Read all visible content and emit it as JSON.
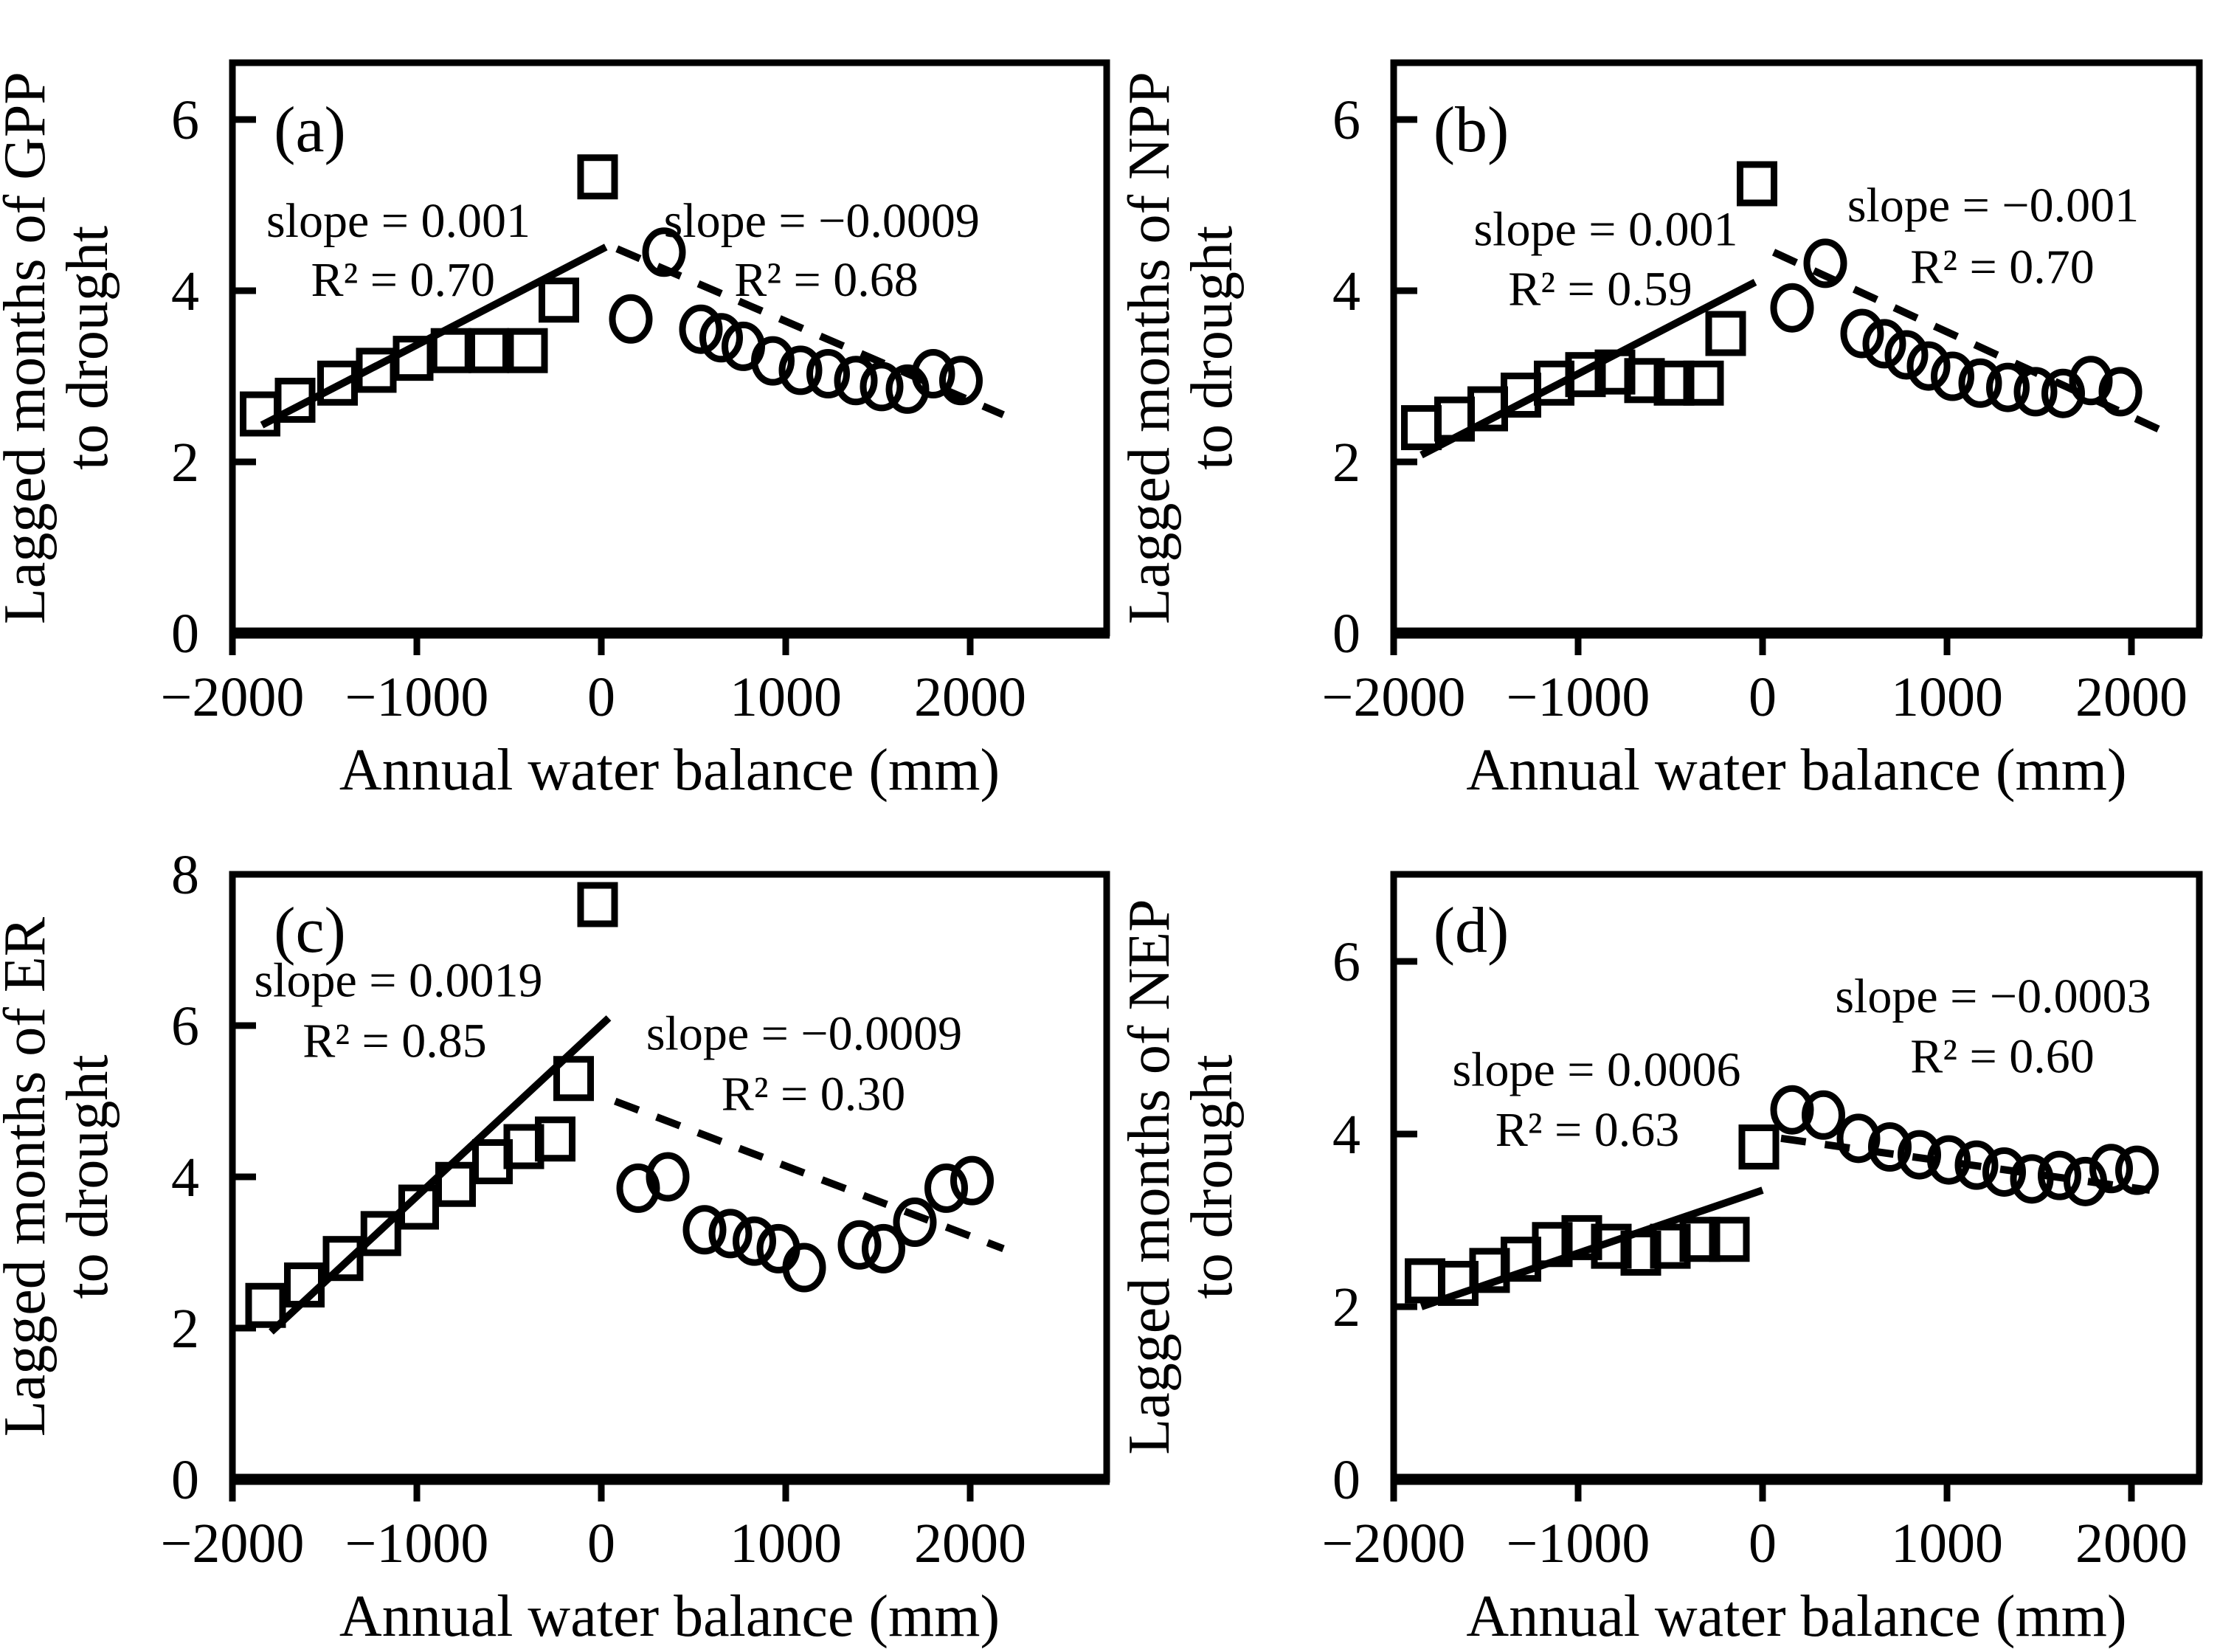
{
  "figure": {
    "background": "#ffffff",
    "ink_color": "#000000",
    "xlabel": "Annual water balance (mm)"
  },
  "chart_data": [
    {
      "panel_letter": "(a)",
      "type": "scatter",
      "xlabel": "Annual water balance (mm)",
      "ylabel_line1": "Lagged months of GPP",
      "ylabel_line2": "to drought",
      "xlim": [
        -2000,
        2740
      ],
      "ylim": [
        0,
        6.66
      ],
      "xticks": [
        -2000,
        -1000,
        0,
        1000,
        2000
      ],
      "xtick_labels": [
        "−2000",
        "−1000",
        "0",
        "1000",
        "2000"
      ],
      "yticks": [
        0,
        2,
        4,
        6
      ],
      "ytick_labels": [
        "0",
        "2",
        "4",
        "6"
      ],
      "grid": false,
      "series": [
        {
          "name": "squares",
          "marker": "square",
          "points": [
            [
              -1850,
              2.56
            ],
            [
              -1660,
              2.72
            ],
            [
              -1430,
              2.92
            ],
            [
              -1220,
              3.07
            ],
            [
              -1020,
              3.21
            ],
            [
              -815,
              3.3
            ],
            [
              -610,
              3.3
            ],
            [
              -400,
              3.3
            ],
            [
              -230,
              3.89
            ],
            [
              -20,
              5.33
            ]
          ]
        },
        {
          "name": "circles",
          "marker": "circle",
          "points": [
            [
              160,
              3.67
            ],
            [
              340,
              4.45
            ],
            [
              540,
              3.55
            ],
            [
              650,
              3.45
            ],
            [
              770,
              3.35
            ],
            [
              930,
              3.18
            ],
            [
              1080,
              3.07
            ],
            [
              1230,
              3.03
            ],
            [
              1380,
              2.95
            ],
            [
              1520,
              2.88
            ],
            [
              1660,
              2.85
            ],
            [
              1800,
              3.03
            ],
            [
              1950,
              2.95
            ]
          ]
        }
      ],
      "fits": [
        {
          "name": "solid-fit-squares",
          "style": "solid",
          "from": [
            -1840,
            2.43
          ],
          "to": [
            25,
            4.51
          ],
          "slope_text": "slope = 0.001",
          "r2_text": "R² = 0.70",
          "slope_anchor": [
            -1100,
            4.82
          ],
          "r2_anchor": [
            -1075,
            4.13
          ]
        },
        {
          "name": "dashed-fit-circles",
          "style": "dashed",
          "from": [
            85,
            4.49
          ],
          "to": [
            2180,
            2.55
          ],
          "slope_text": "slope = −0.0009",
          "r2_text": "R² = 0.68",
          "slope_anchor": [
            1195,
            4.82
          ],
          "r2_anchor": [
            1220,
            4.13
          ]
        }
      ]
    },
    {
      "panel_letter": "(b)",
      "type": "scatter",
      "xlabel": "Annual water balance (mm)",
      "ylabel_line1": "Lagged months of NPP",
      "ylabel_line2": "to drought",
      "xlim": [
        -2000,
        2368
      ],
      "ylim": [
        0,
        6.66
      ],
      "xticks": [
        -2000,
        -1000,
        0,
        1000,
        2000
      ],
      "xtick_labels": [
        "−2000",
        "−1000",
        "0",
        "1000",
        "2000"
      ],
      "yticks": [
        0,
        2,
        4,
        6
      ],
      "ytick_labels": [
        "0",
        "2",
        "4",
        "6"
      ],
      "grid": false,
      "series": [
        {
          "name": "squares",
          "marker": "square",
          "points": [
            [
              -1850,
              2.4
            ],
            [
              -1670,
              2.5
            ],
            [
              -1490,
              2.62
            ],
            [
              -1310,
              2.78
            ],
            [
              -1130,
              2.92
            ],
            [
              -960,
              3.02
            ],
            [
              -800,
              3.05
            ],
            [
              -640,
              2.95
            ],
            [
              -480,
              2.92
            ],
            [
              -320,
              2.92
            ],
            [
              -200,
              3.5
            ],
            [
              -30,
              5.25
            ]
          ]
        },
        {
          "name": "circles",
          "marker": "circle",
          "points": [
            [
              160,
              3.8
            ],
            [
              340,
              4.32
            ],
            [
              540,
              3.5
            ],
            [
              660,
              3.38
            ],
            [
              780,
              3.25
            ],
            [
              900,
              3.12
            ],
            [
              1030,
              3.0
            ],
            [
              1180,
              2.92
            ],
            [
              1330,
              2.87
            ],
            [
              1480,
              2.82
            ],
            [
              1630,
              2.8
            ],
            [
              1780,
              2.95
            ],
            [
              1940,
              2.82
            ]
          ]
        }
      ],
      "fits": [
        {
          "name": "solid-fit-squares",
          "style": "solid",
          "from": [
            -1850,
            2.08
          ],
          "to": [
            -40,
            4.1
          ],
          "slope_text": "slope = 0.001",
          "r2_text": "R² = 0.59",
          "slope_anchor": [
            -850,
            4.72
          ],
          "r2_anchor": [
            -880,
            4.02
          ]
        },
        {
          "name": "dashed-fit-circles",
          "style": "dashed",
          "from": [
            60,
            4.45
          ],
          "to": [
            2180,
            2.35
          ],
          "slope_text": "slope = −0.001",
          "r2_text": "R² = 0.70",
          "slope_anchor": [
            1250,
            5.0
          ],
          "r2_anchor": [
            1300,
            4.28
          ]
        }
      ]
    },
    {
      "panel_letter": "(c)",
      "type": "scatter",
      "xlabel": "Annual water balance (mm)",
      "ylabel_line1": "Lagged months of ER",
      "ylabel_line2": "to drought",
      "xlim": [
        -2000,
        2740
      ],
      "ylim": [
        0,
        8
      ],
      "xticks": [
        -2000,
        -1000,
        0,
        1000,
        2000
      ],
      "xtick_labels": [
        "−2000",
        "−1000",
        "0",
        "1000",
        "2000"
      ],
      "yticks": [
        0,
        2,
        4,
        6,
        8
      ],
      "ytick_labels": [
        "0",
        "2",
        "4",
        "6",
        "8"
      ],
      "grid": false,
      "series": [
        {
          "name": "squares",
          "marker": "square",
          "points": [
            [
              -1820,
              2.3
            ],
            [
              -1610,
              2.57
            ],
            [
              -1400,
              2.92
            ],
            [
              -1195,
              3.25
            ],
            [
              -990,
              3.6
            ],
            [
              -790,
              3.9
            ],
            [
              -590,
              4.2
            ],
            [
              -420,
              4.4
            ],
            [
              -250,
              4.5
            ],
            [
              -150,
              5.3
            ],
            [
              -20,
              7.6
            ]
          ]
        },
        {
          "name": "circles",
          "marker": "circle",
          "points": [
            [
              200,
              3.85
            ],
            [
              360,
              4.0
            ],
            [
              560,
              3.3
            ],
            [
              700,
              3.25
            ],
            [
              830,
              3.15
            ],
            [
              960,
              3.05
            ],
            [
              1100,
              2.8
            ],
            [
              1400,
              3.1
            ],
            [
              1530,
              3.05
            ],
            [
              1700,
              3.4
            ],
            [
              1870,
              3.85
            ],
            [
              2010,
              3.95
            ]
          ]
        }
      ],
      "fits": [
        {
          "name": "solid-fit-squares",
          "style": "solid",
          "from": [
            -1790,
            1.95
          ],
          "to": [
            40,
            6.1
          ],
          "slope_text": "slope = 0.0019",
          "r2_text": "R² = 0.85",
          "slope_anchor": [
            -1100,
            6.6
          ],
          "r2_anchor": [
            -1120,
            5.8
          ]
        },
        {
          "name": "dashed-fit-circles",
          "style": "dashed",
          "from": [
            75,
            5.0
          ],
          "to": [
            2180,
            3.05
          ],
          "slope_text": "slope = −0.0009",
          "r2_text": "R² = 0.30",
          "slope_anchor": [
            1100,
            5.9
          ],
          "r2_anchor": [
            1150,
            5.1
          ]
        }
      ]
    },
    {
      "panel_letter": "(d)",
      "type": "scatter",
      "xlabel": "Annual water balance (mm)",
      "ylabel_line1": "Lagged months of NEP",
      "ylabel_line2": "to drought",
      "xlim": [
        -2000,
        2368
      ],
      "ylim": [
        0,
        7
      ],
      "xticks": [
        -2000,
        -1000,
        0,
        1000,
        2000
      ],
      "xtick_labels": [
        "−2000",
        "−1000",
        "0",
        "1000",
        "2000"
      ],
      "yticks": [
        0,
        2,
        4,
        6
      ],
      "ytick_labels": [
        "0",
        "2",
        "4",
        "6"
      ],
      "grid": false,
      "series": [
        {
          "name": "squares",
          "marker": "square",
          "points": [
            [
              -1830,
              2.3
            ],
            [
              -1650,
              2.27
            ],
            [
              -1480,
              2.42
            ],
            [
              -1310,
              2.55
            ],
            [
              -1140,
              2.72
            ],
            [
              -980,
              2.8
            ],
            [
              -820,
              2.7
            ],
            [
              -660,
              2.62
            ],
            [
              -500,
              2.7
            ],
            [
              -340,
              2.78
            ],
            [
              -180,
              2.78
            ],
            [
              -20,
              3.85
            ]
          ]
        },
        {
          "name": "circles",
          "marker": "circle",
          "points": [
            [
              160,
              4.28
            ],
            [
              330,
              4.22
            ],
            [
              520,
              3.95
            ],
            [
              690,
              3.85
            ],
            [
              850,
              3.76
            ],
            [
              1010,
              3.7
            ],
            [
              1160,
              3.64
            ],
            [
              1310,
              3.56
            ],
            [
              1460,
              3.48
            ],
            [
              1610,
              3.52
            ],
            [
              1750,
              3.45
            ],
            [
              1890,
              3.6
            ],
            [
              2030,
              3.58
            ]
          ]
        }
      ],
      "fits": [
        {
          "name": "solid-fit-squares",
          "style": "solid",
          "from": [
            -1850,
            2.0
          ],
          "to": [
            0,
            3.35
          ],
          "slope_text": "slope = 0.0006",
          "r2_text": "R² = 0.63",
          "slope_anchor": [
            -900,
            4.75
          ],
          "r2_anchor": [
            -950,
            4.05
          ]
        },
        {
          "name": "dashed-fit-circles",
          "style": "dashed",
          "from": [
            100,
            3.95
          ],
          "to": [
            2100,
            3.35
          ],
          "slope_text": "slope = −0.0003",
          "r2_text": "R² = 0.60",
          "slope_anchor": [
            1250,
            5.6
          ],
          "r2_anchor": [
            1300,
            4.9
          ]
        }
      ]
    }
  ]
}
